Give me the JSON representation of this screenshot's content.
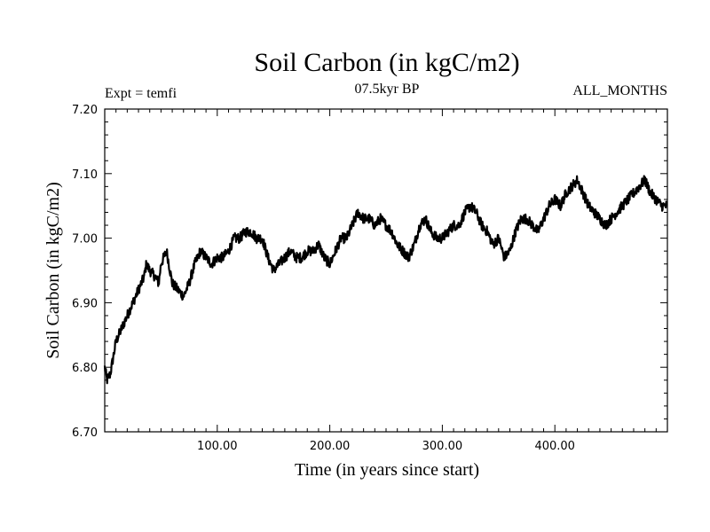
{
  "chart_data": {
    "type": "line",
    "title": "Soil Carbon (in kgC/m2)",
    "subtitle_left": "Expt = temfi",
    "subtitle_center": "07.5kyr BP",
    "subtitle_right": "ALL_MONTHS",
    "xlabel": "Time (in years since start)",
    "ylabel": "Soil Carbon (in kgC/m2)",
    "xlim": [
      0,
      500
    ],
    "ylim": [
      6.7,
      7.2
    ],
    "x_ticks": [
      100,
      200,
      300,
      400
    ],
    "x_tick_labels": [
      "100.00",
      "200.00",
      "300.00",
      "400.00"
    ],
    "y_ticks": [
      6.7,
      6.8,
      6.9,
      7.0,
      7.1,
      7.2
    ],
    "y_tick_labels": [
      "6.70",
      "6.80",
      "6.90",
      "7.00",
      "7.10",
      "7.20"
    ],
    "series": [
      {
        "name": "Soil Carbon",
        "color": "#000000",
        "x": [
          0,
          2,
          5,
          10,
          15,
          20,
          25,
          30,
          35,
          37,
          40,
          45,
          48,
          50,
          55,
          60,
          65,
          70,
          75,
          80,
          85,
          90,
          95,
          100,
          105,
          110,
          115,
          120,
          125,
          130,
          135,
          140,
          145,
          150,
          155,
          160,
          165,
          170,
          175,
          180,
          185,
          190,
          195,
          200,
          205,
          210,
          215,
          220,
          225,
          230,
          235,
          240,
          245,
          250,
          255,
          260,
          265,
          270,
          275,
          280,
          285,
          290,
          295,
          300,
          305,
          310,
          315,
          320,
          325,
          330,
          335,
          340,
          345,
          350,
          355,
          360,
          365,
          370,
          375,
          380,
          385,
          390,
          395,
          400,
          405,
          410,
          415,
          420,
          425,
          430,
          435,
          440,
          445,
          450,
          455,
          460,
          465,
          470,
          475,
          480,
          485,
          490,
          495,
          500
        ],
        "values": [
          6.8,
          6.78,
          6.79,
          6.84,
          6.86,
          6.88,
          6.9,
          6.92,
          6.94,
          6.96,
          6.95,
          6.94,
          6.93,
          6.96,
          6.98,
          6.93,
          6.92,
          6.91,
          6.93,
          6.96,
          6.98,
          6.97,
          6.96,
          6.97,
          6.97,
          6.98,
          7.0,
          7.0,
          7.01,
          7.01,
          7.0,
          7.0,
          6.97,
          6.95,
          6.96,
          6.97,
          6.98,
          6.97,
          6.97,
          6.98,
          6.98,
          6.99,
          6.97,
          6.96,
          6.98,
          7.0,
          7.0,
          7.02,
          7.04,
          7.03,
          7.03,
          7.02,
          7.03,
          7.02,
          7.01,
          6.99,
          6.98,
          6.97,
          6.99,
          7.02,
          7.03,
          7.01,
          7.0,
          7.0,
          7.01,
          7.02,
          7.02,
          7.04,
          7.05,
          7.04,
          7.02,
          7.01,
          6.99,
          7.0,
          6.97,
          6.98,
          7.01,
          7.03,
          7.03,
          7.02,
          7.01,
          7.03,
          7.05,
          7.06,
          7.05,
          7.07,
          7.08,
          7.09,
          7.07,
          7.05,
          7.04,
          7.03,
          7.02,
          7.03,
          7.04,
          7.05,
          7.06,
          7.07,
          7.08,
          7.09,
          7.07,
          7.06,
          7.05,
          7.05
        ]
      }
    ]
  }
}
